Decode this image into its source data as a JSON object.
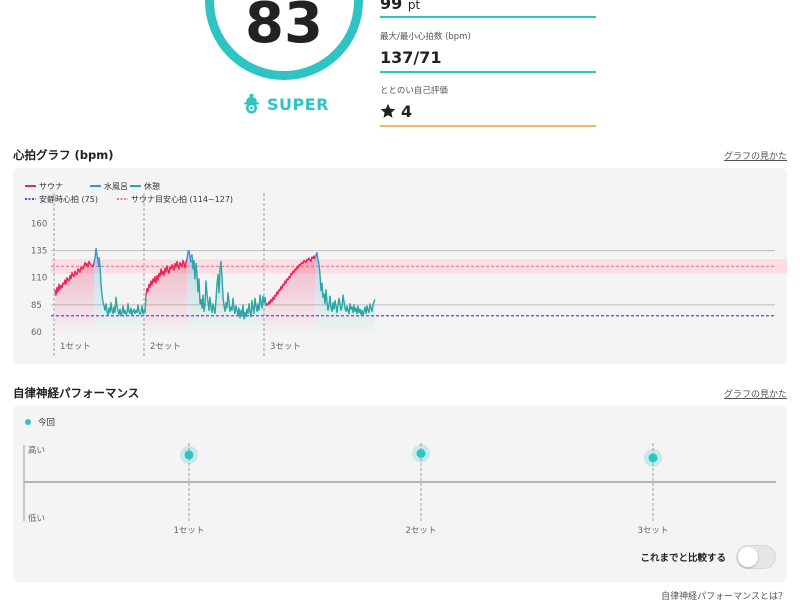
{
  "summary": {
    "score": "83",
    "rank": "SUPER",
    "points_value": "99",
    "points_unit": "pt",
    "maxmin_label": "最大/最小心拍数 (bpm)",
    "maxmin_value": "137/71",
    "rating_label": "ととのい自己評価",
    "rating_value": "4"
  },
  "heart_section": {
    "title": "心拍グラフ (bpm)",
    "help_link": "グラフの見かた"
  },
  "chart_data": [
    {
      "type": "line",
      "title": "心拍グラフ (bpm)",
      "ylabel": "",
      "ylim": [
        60,
        165
      ],
      "y_ticks": [
        "160",
        "135",
        "110",
        "85",
        "60"
      ],
      "set_labels": [
        "1セット",
        "2セット",
        "3セット"
      ],
      "legend": {
        "sauna": "サウナ",
        "water": "水風呂",
        "rest": "休憩",
        "resting_hr": "安静時心拍 (75)",
        "sauna_target": "サウナ目安心拍 (114~127)"
      },
      "colors": {
        "sauna": "#e8265a",
        "water": "#3a8ee6",
        "rest": "#2aa6a6",
        "resting_hr": "#8a2be2",
        "sauna_target": "#f07a90"
      },
      "resting_hr": 75,
      "sauna_target": [
        114,
        127
      ],
      "series": [
        {
          "name": "サウナ",
          "segments": [
            {
              "t": [
                0,
                1,
                2,
                3,
                4,
                5,
                6,
                7,
                8,
                9,
                10,
                11,
                12,
                13,
                14,
                15,
                16,
                17,
                18,
                19,
                20,
                21,
                22,
                23,
                24,
                25,
                26,
                27,
                28,
                29,
                30,
                31,
                32,
                33,
                34,
                35,
                36,
                37,
                38,
                39
              ],
              "v": [
                99,
                94,
                101,
                97,
                104,
                99,
                103,
                101,
                105,
                104,
                108,
                104,
                110,
                108,
                107,
                112,
                109,
                115,
                112,
                111,
                116,
                114,
                113,
                118,
                117,
                115,
                120,
                119,
                118,
                121,
                124,
                121,
                123,
                120,
                125,
                123,
                122,
                121,
                120,
                124
              ]
            },
            {
              "t": [
                91,
                92,
                93,
                94,
                95,
                96,
                97,
                98,
                99,
                100,
                101,
                102,
                103,
                104,
                105,
                106,
                107,
                108,
                109,
                110,
                111,
                112,
                113,
                114,
                115,
                116,
                117,
                118,
                119,
                120,
                121,
                122,
                123,
                124,
                125,
                126,
                127,
                128,
                129,
                130,
                131,
                132
              ],
              "v": [
                94,
                100,
                97,
                104,
                101,
                107,
                103,
                109,
                106,
                111,
                105,
                112,
                108,
                114,
                111,
                118,
                113,
                116,
                112,
                119,
                115,
                121,
                117,
                114,
                120,
                118,
                122,
                119,
                117,
                123,
                120,
                125,
                121,
                118,
                124,
                122,
                120,
                126,
                123,
                119,
                125,
                127
              ]
            },
            {
              "t": [
                211,
                212,
                213,
                214,
                215,
                216,
                217,
                218,
                219,
                220,
                221,
                222,
                223,
                224,
                225,
                226,
                227,
                228,
                229,
                230,
                231,
                232,
                233,
                234,
                235,
                236,
                237,
                238,
                239,
                240,
                241,
                242,
                243,
                244,
                245,
                246,
                247,
                248,
                249,
                250,
                251,
                252,
                253,
                254,
                255,
                256,
                257,
                258,
                259,
                260
              ],
              "v": [
                84,
                86,
                85,
                88,
                86,
                90,
                88,
                92,
                90,
                94,
                93,
                97,
                95,
                99,
                98,
                102,
                100,
                104,
                103,
                107,
                105,
                109,
                108,
                111,
                110,
                114,
                113,
                116,
                115,
                118,
                117,
                120,
                119,
                122,
                121,
                123,
                124,
                123,
                126,
                125,
                124,
                127,
                126,
                128,
                127,
                125,
                129,
                128,
                130,
                127
              ]
            }
          ]
        },
        {
          "name": "水風呂",
          "segments": [
            {
              "t": [
                39,
                40,
                41,
                42,
                43,
                44
              ],
              "v": [
                124,
                128,
                137,
                131,
                125,
                120
              ]
            },
            {
              "t": [
                132,
                133,
                134,
                135,
                136
              ],
              "v": [
                127,
                134,
                135,
                129,
                124
              ]
            },
            {
              "t": [
                260,
                261,
                262,
                263,
                264
              ],
              "v": [
                127,
                131,
                133,
                126,
                122
              ]
            }
          ]
        },
        {
          "name": "休憩",
          "segments": [
            {
              "t": [
                44,
                45,
                46,
                47,
                48,
                49,
                50,
                51,
                52,
                53,
                54,
                55,
                56,
                57,
                58,
                59,
                60,
                61,
                62,
                63,
                64,
                65,
                66,
                67,
                68,
                69,
                70,
                71,
                72,
                73,
                74,
                75,
                76,
                77,
                78,
                79,
                80,
                81,
                82,
                83,
                84,
                85,
                86,
                87,
                88,
                89,
                90,
                91
              ],
              "v": [
                129,
                121,
                105,
                94,
                88,
                84,
                80,
                86,
                79,
                76,
                82,
                78,
                87,
                80,
                77,
                83,
                78,
                92,
                84,
                79,
                76,
                81,
                75,
                78,
                84,
                77,
                80,
                76,
                78,
                86,
                79,
                77,
                82,
                76,
                79,
                81,
                77,
                80,
                78,
                85,
                79,
                76,
                78,
                84,
                77,
                80,
                78,
                94
              ]
            },
            {
              "t": [
                136,
                137,
                138,
                139,
                140,
                141,
                142,
                143,
                144,
                145,
                146,
                147,
                148,
                149,
                150,
                151,
                152,
                153,
                154,
                155,
                156,
                157,
                158,
                159,
                160,
                161,
                162,
                163,
                164,
                165,
                166,
                167,
                168,
                169,
                170,
                171,
                172,
                173,
                174,
                175,
                176,
                177,
                178,
                179,
                180,
                181,
                182,
                183,
                184,
                185,
                186,
                187,
                188,
                189,
                190,
                191,
                192,
                193,
                194,
                195,
                196,
                197,
                198,
                199,
                200,
                201,
                202,
                203,
                204,
                205,
                206,
                207,
                208,
                209,
                210,
                211
              ],
              "v": [
                129,
                131,
                118,
                126,
                109,
                123,
                114,
                97,
                109,
                86,
                90,
                82,
                94,
                79,
                85,
                107,
                95,
                88,
                80,
                92,
                83,
                78,
                86,
                81,
                77,
                90,
                104,
                113,
                96,
                118,
                125,
                110,
                93,
                84,
                79,
                87,
                82,
                96,
                88,
                79,
                83,
                80,
                91,
                82,
                77,
                84,
                80,
                75,
                82,
                73,
                80,
                76,
                85,
                72,
                78,
                74,
                81,
                77,
                86,
                79,
                74,
                89,
                82,
                77,
                91,
                84,
                79,
                86,
                80,
                94,
                88,
                82,
                93,
                87,
                92,
                84
              ]
            },
            {
              "t": [
                264,
                265,
                266,
                267,
                268,
                269,
                270,
                271,
                272,
                273,
                274,
                275,
                276,
                277,
                278,
                279,
                280,
                281,
                282,
                283,
                284,
                285,
                286,
                287,
                288,
                289,
                290,
                291,
                292,
                293,
                294,
                295,
                296,
                297,
                298,
                299,
                300,
                301,
                302,
                303,
                304,
                305,
                306,
                307,
                308,
                309,
                310,
                311,
                312,
                313,
                314,
                315,
                316,
                317,
                318,
                319,
                320
              ],
              "v": [
                122,
                113,
                98,
                105,
                92,
                95,
                86,
                99,
                88,
                80,
                85,
                93,
                82,
                79,
                87,
                81,
                89,
                84,
                78,
                85,
                91,
                86,
                80,
                83,
                94,
                88,
                82,
                79,
                84,
                80,
                77,
                86,
                81,
                83,
                78,
                85,
                79,
                82,
                77,
                84,
                78,
                81,
                76,
                80,
                75,
                79,
                83,
                77,
                84,
                80,
                78,
                86,
                82,
                79,
                85,
                88,
                90
              ]
            }
          ]
        }
      ]
    },
    {
      "type": "scatter",
      "title": "自律神経パフォーマンス",
      "legend": "今回",
      "y_high_label": "高い",
      "y_low_label": "低い",
      "categories": [
        "1セット",
        "2セット",
        "3セット"
      ],
      "values": [
        0.83,
        0.85,
        0.79
      ],
      "point_color": "#2ec4c4"
    }
  ],
  "autonomic_section": {
    "title": "自律神経パフォーマンス",
    "help_link": "グラフの見かた",
    "compare_label": "これまでと比較する",
    "compare_on": false,
    "bottom_link": "自律神経パフォーマンスとは？"
  },
  "colors": {
    "accent": "#2ec4c4",
    "divider_points": "#2ec4c4",
    "divider_maxmin": "#2ec4c4",
    "divider_rating": "#f2b56a"
  },
  "icons": [
    "super-rank-icon",
    "star-icon"
  ]
}
